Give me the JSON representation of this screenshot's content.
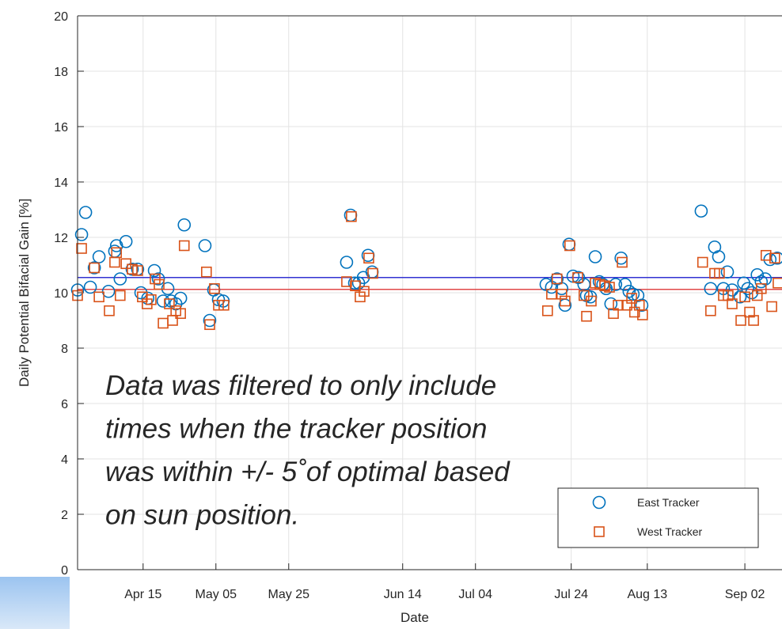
{
  "chart_data": {
    "type": "scatter",
    "x_label": "Date",
    "y_label": "Daily Potential Bifacial Gain [%]",
    "annotation": [
      "Data was filtered to only include",
      "times when the tracker position",
      "was within +/- 5˚of optimal based",
      "on sun position."
    ],
    "xlim": [
      0,
      193.5
    ],
    "xticks": [
      {
        "value": 18.0,
        "label": "Apr 15"
      },
      {
        "value": 38.0,
        "label": "May 05"
      },
      {
        "value": 58.0,
        "label": "May 25"
      },
      {
        "value": 89.3,
        "label": "Jun 14"
      },
      {
        "value": 109.3,
        "label": "Jul 04"
      },
      {
        "value": 135.6,
        "label": "Jul 24"
      },
      {
        "value": 156.5,
        "label": "Aug 13"
      },
      {
        "value": 183.3,
        "label": "Sep 02"
      }
    ],
    "ylim": [
      0,
      20
    ],
    "yticks": [
      0,
      2,
      4,
      6,
      8,
      10,
      12,
      14,
      16,
      18,
      20
    ],
    "grid": true,
    "legend": "lower right",
    "hlines": [
      {
        "value": 10.55,
        "color": "#3232d2"
      },
      {
        "value": 10.12,
        "color": "#e04848"
      }
    ],
    "series": [
      {
        "name": "East Tracker",
        "color": "#0072bd",
        "marker": "circle",
        "x": [
          0,
          1.1,
          2.2,
          3.5,
          4.6,
          5.9,
          8.5,
          10.2,
          10.7,
          11.7,
          13.3,
          15.0,
          16.5,
          17.4,
          19.3,
          21.1,
          22.2,
          23.5,
          24.8,
          25.7,
          27.0,
          28.3,
          29.3,
          35.0,
          36.3,
          37.4,
          38.7,
          40.0,
          73.9,
          75.0,
          76.1,
          77.2,
          78.5,
          79.8,
          80.9,
          128.7,
          130.2,
          131.7,
          133.0,
          133.9,
          135.0,
          136.1,
          137.6,
          139.1,
          139.8,
          140.9,
          142.2,
          143.3,
          144.3,
          145.2,
          146.5,
          147.8,
          149.3,
          150.4,
          151.5,
          152.6,
          153.9,
          155.0,
          171.3,
          173.9,
          175.0,
          176.1,
          177.4,
          178.5,
          179.8,
          182.0,
          183.0,
          184.1,
          185.2,
          186.7,
          187.8,
          188.9,
          190.2,
          192.2
        ],
        "values": [
          10.1,
          12.1,
          12.9,
          10.2,
          10.9,
          11.3,
          10.05,
          11.5,
          11.7,
          10.5,
          11.85,
          10.85,
          10.85,
          10.0,
          9.8,
          10.8,
          10.5,
          9.7,
          10.15,
          9.7,
          9.6,
          9.8,
          12.45,
          11.7,
          9.0,
          10.1,
          9.75,
          9.7,
          11.1,
          12.8,
          10.35,
          10.35,
          10.55,
          11.35,
          10.75,
          10.3,
          10.2,
          10.5,
          10.15,
          9.55,
          11.75,
          10.6,
          10.55,
          10.3,
          9.9,
          9.85,
          11.3,
          10.4,
          10.3,
          10.15,
          9.6,
          10.3,
          11.25,
          10.3,
          10.05,
          9.95,
          9.9,
          9.55,
          12.95,
          10.15,
          11.65,
          11.3,
          10.15,
          10.75,
          10.1,
          9.85,
          10.35,
          10.15,
          10.0,
          10.65,
          10.4,
          10.5,
          11.2,
          11.25
        ]
      },
      {
        "name": "West Tracker",
        "color": "#d95319",
        "marker": "square",
        "x": [
          0,
          1.1,
          4.6,
          5.9,
          8.7,
          10.2,
          10.7,
          11.7,
          13.3,
          15.0,
          16.5,
          17.8,
          19.1,
          20.2,
          21.3,
          22.4,
          23.5,
          25.2,
          26.1,
          27.0,
          28.3,
          29.3,
          35.4,
          36.3,
          37.6,
          38.7,
          40.2,
          73.9,
          75.2,
          76.3,
          77.6,
          78.7,
          80.0,
          81.1,
          129.1,
          130.2,
          131.7,
          133.0,
          133.9,
          135.2,
          137.4,
          139.1,
          139.8,
          141.1,
          142.2,
          143.5,
          144.8,
          146.1,
          147.2,
          148.5,
          149.6,
          150.9,
          152.2,
          153.0,
          154.3,
          155.2,
          171.7,
          173.9,
          175.0,
          176.3,
          177.4,
          178.7,
          179.8,
          182.2,
          183.3,
          184.6,
          185.7,
          186.7,
          187.8,
          189.1,
          190.7,
          191.5,
          192.4
        ],
        "values": [
          9.9,
          11.6,
          10.9,
          9.85,
          9.35,
          11.1,
          11.45,
          9.9,
          11.05,
          10.85,
          10.8,
          9.85,
          9.6,
          9.75,
          10.5,
          10.3,
          8.9,
          9.6,
          9.0,
          9.35,
          9.25,
          11.7,
          10.75,
          8.85,
          10.15,
          9.55,
          9.55,
          10.4,
          12.75,
          10.25,
          9.85,
          10.05,
          11.25,
          10.7,
          9.35,
          9.95,
          10.5,
          9.95,
          9.7,
          11.7,
          10.55,
          9.9,
          9.15,
          9.7,
          10.35,
          10.3,
          10.25,
          10.2,
          9.25,
          9.55,
          11.1,
          9.55,
          9.8,
          9.3,
          9.55,
          9.2,
          11.1,
          9.35,
          10.7,
          10.7,
          9.9,
          9.9,
          9.6,
          9.0,
          9.85,
          9.3,
          9.0,
          9.9,
          10.15,
          11.35,
          9.5,
          11.25,
          10.35
        ]
      }
    ]
  }
}
